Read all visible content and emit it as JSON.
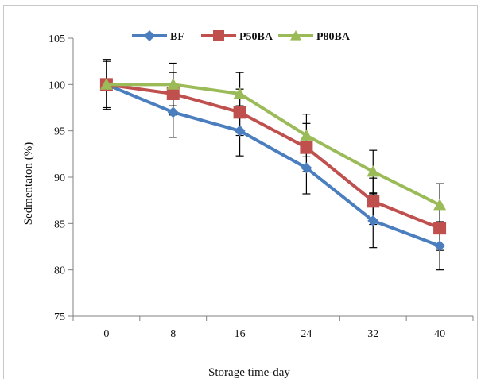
{
  "chart_data": {
    "type": "line",
    "title": "",
    "xlabel": "Storage time-day",
    "ylabel": "Sedmentaton (%)",
    "x": [
      0,
      8,
      16,
      24,
      32,
      40
    ],
    "x_tick_labels": [
      "0",
      "8",
      "16",
      "24",
      "32",
      "40"
    ],
    "ylim": [
      75,
      105
    ],
    "y_ticks": [
      75,
      80,
      85,
      90,
      95,
      100,
      105
    ],
    "y_tick_labels": [
      "75",
      "80",
      "85",
      "90",
      "95",
      "100",
      "105"
    ],
    "grid": false,
    "legend_position": "top",
    "series": [
      {
        "name": "BF",
        "color": "#4a7ebf",
        "marker": "diamond",
        "values": [
          100,
          97,
          95,
          91,
          85.3,
          82.6
        ],
        "error": [
          2.7,
          2.7,
          2.7,
          2.8,
          2.9,
          2.6
        ]
      },
      {
        "name": "P50BA",
        "color": "#c0504d",
        "marker": "square",
        "values": [
          100,
          99,
          97,
          93.2,
          87.4,
          84.5
        ],
        "error": [
          2.5,
          2.3,
          2.5,
          2.6,
          2.5,
          2.4
        ]
      },
      {
        "name": "P80BA",
        "color": "#9bbb59",
        "marker": "triangle",
        "values": [
          100,
          100,
          99,
          94.5,
          90.6,
          87
        ],
        "error": [
          2.7,
          2.3,
          2.3,
          2.3,
          2.3,
          2.3
        ]
      }
    ]
  }
}
